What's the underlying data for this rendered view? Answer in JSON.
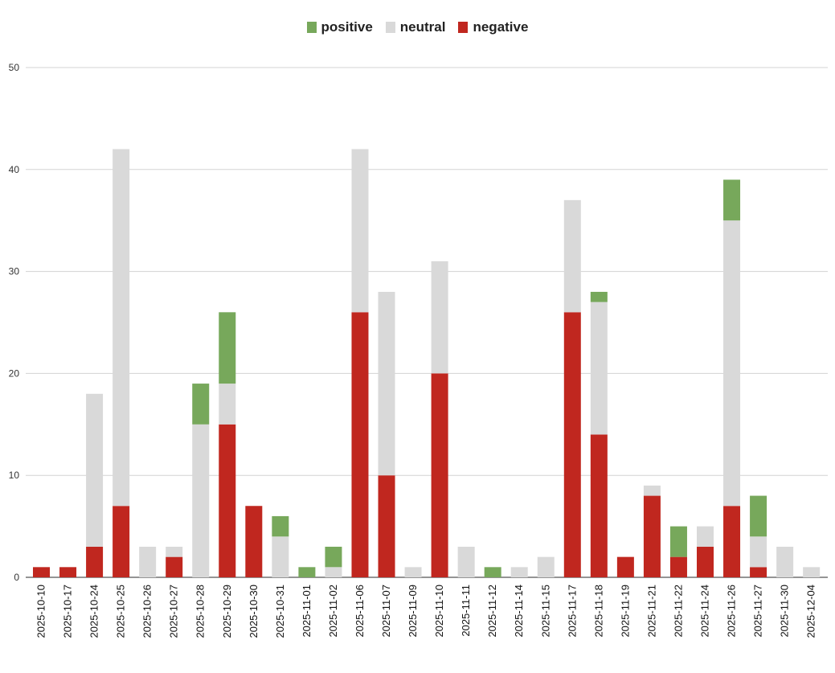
{
  "chart_data": {
    "type": "bar",
    "stacked": true,
    "title": "",
    "xlabel": "",
    "ylabel": "",
    "ylim": [
      0,
      50
    ],
    "yticks": [
      0,
      10,
      20,
      30,
      40,
      50
    ],
    "grid": true,
    "legend_position": "top-center",
    "categories": [
      "2025-10-10",
      "2025-10-17",
      "2025-10-24",
      "2025-10-25",
      "2025-10-26",
      "2025-10-27",
      "2025-10-28",
      "2025-10-29",
      "2025-10-30",
      "2025-10-31",
      "2025-11-01",
      "2025-11-02",
      "2025-11-06",
      "2025-11-07",
      "2025-11-09",
      "2025-11-10",
      "2025-11-11",
      "2025-11-12",
      "2025-11-14",
      "2025-11-15",
      "2025-11-17",
      "2025-11-18",
      "2025-11-19",
      "2025-11-21",
      "2025-11-22",
      "2025-11-24",
      "2025-11-26",
      "2025-11-27",
      "2025-11-30",
      "2025-12-04"
    ],
    "series": [
      {
        "name": "negative",
        "color": "#c0271f",
        "values": [
          1,
          1,
          3,
          7,
          0,
          2,
          0,
          15,
          7,
          0,
          0,
          0,
          26,
          10,
          0,
          20,
          0,
          0,
          0,
          0,
          26,
          14,
          2,
          8,
          2,
          3,
          7,
          1,
          0,
          0
        ]
      },
      {
        "name": "neutral",
        "color": "#d9d9d9",
        "values": [
          0,
          0,
          15,
          35,
          3,
          1,
          15,
          4,
          0,
          4,
          0,
          1,
          16,
          18,
          1,
          11,
          3,
          0,
          1,
          2,
          11,
          13,
          0,
          1,
          0,
          2,
          28,
          3,
          3,
          1
        ]
      },
      {
        "name": "positive",
        "color": "#77a85b",
        "values": [
          0,
          0,
          0,
          0,
          0,
          0,
          4,
          7,
          0,
          2,
          1,
          2,
          0,
          0,
          0,
          0,
          0,
          1,
          0,
          0,
          0,
          1,
          0,
          0,
          3,
          0,
          4,
          4,
          0,
          0
        ]
      }
    ]
  },
  "legend": {
    "items": [
      {
        "label": "positive",
        "color": "#77a85b"
      },
      {
        "label": "neutral",
        "color": "#d9d9d9"
      },
      {
        "label": "negative",
        "color": "#c0271f"
      }
    ]
  }
}
